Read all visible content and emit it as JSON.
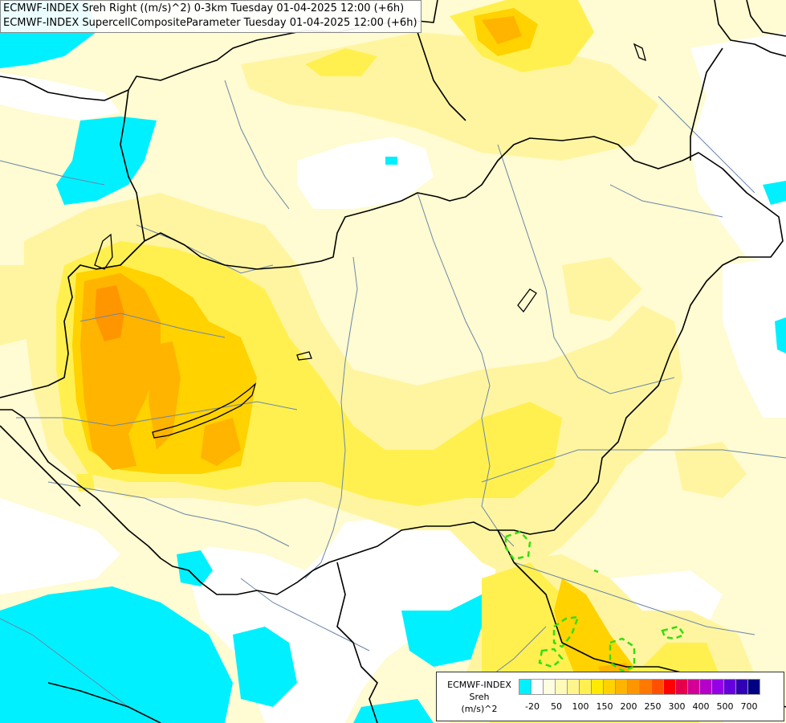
{
  "title": {
    "line1": "ECMWF-INDEX Sreh Right ((m/s)^2) 0-3km Tuesday 01-04-2025 12:00 (+6h)",
    "line2": "ECMWF-INDEX SupercellCompositeParameter Tuesday 01-04-2025 12:00 (+6h)"
  },
  "legend": {
    "line1": "ECMWF-INDEX",
    "line2": "Sreh",
    "line3": "(m/s)^2",
    "colors": [
      "#00f0ff",
      "#ffffff",
      "#fffde0",
      "#fffab8",
      "#fff58c",
      "#fff050",
      "#ffea00",
      "#ffd200",
      "#ffb400",
      "#ff9600",
      "#ff7800",
      "#ff5000",
      "#ff0000",
      "#e6004c",
      "#d20096",
      "#b400c8",
      "#9600e6",
      "#6400dc",
      "#3200b4",
      "#000082"
    ],
    "ticks": [
      "-20",
      "50",
      "100",
      "150",
      "200",
      "250",
      "300",
      "400",
      "500",
      "700"
    ]
  },
  "colors": {
    "cyan": "#00f0ff",
    "white": "#ffffff",
    "pale": "#fffbd2",
    "light_yellow": "#fff5a0",
    "yellow": "#fff050",
    "gold": "#ffd200",
    "orange": "#ffb400",
    "dark_orange": "#ff9600",
    "green_contour": "#33dd11"
  }
}
